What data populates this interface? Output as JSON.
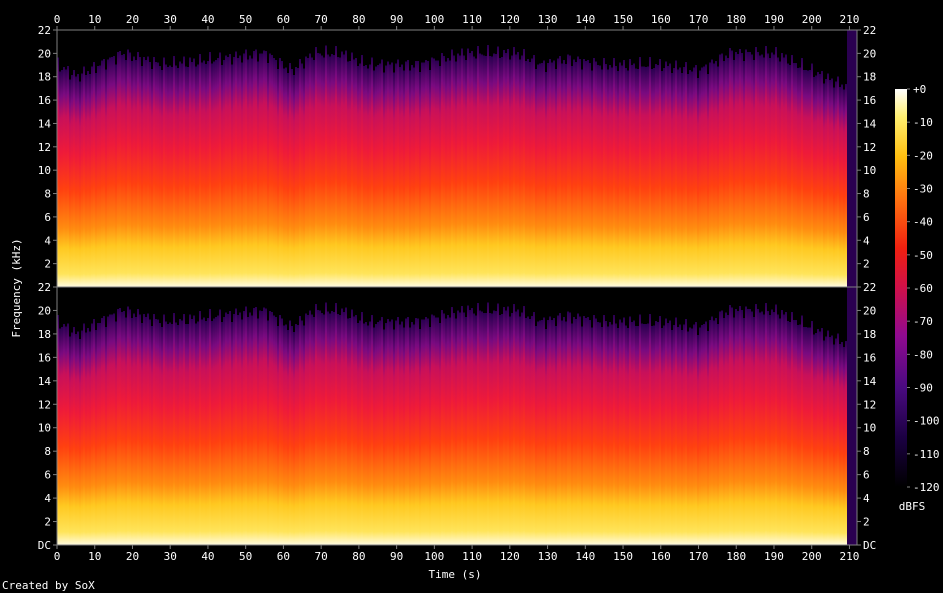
{
  "chart_data": {
    "type": "heatmap",
    "title": "",
    "xlabel": "Time (s)",
    "ylabel": "Frequency (kHz)",
    "colorbar_label": "dBFS",
    "credit": "Created by SoX",
    "channels": 2,
    "x_range": [
      0,
      212
    ],
    "x_ticks": [
      0,
      10,
      20,
      30,
      40,
      50,
      60,
      70,
      80,
      90,
      100,
      110,
      120,
      130,
      140,
      150,
      160,
      170,
      180,
      190,
      200,
      210
    ],
    "x_tick_labels": [
      "0",
      "10",
      "20",
      "30",
      "40",
      "50",
      "60",
      "70",
      "80",
      "90",
      "100",
      "110",
      "120",
      "130",
      "140",
      "150",
      "160",
      "170",
      "180",
      "190",
      "200",
      "210"
    ],
    "y_range": [
      0,
      22
    ],
    "y_ticks": [
      2,
      4,
      6,
      8,
      10,
      12,
      14,
      16,
      18,
      20,
      22
    ],
    "y_tick_labels_top": [
      "2",
      "4",
      "6",
      "8",
      "10",
      "12",
      "14",
      "16",
      "18",
      "20",
      "22"
    ],
    "y_tick_labels_bottom": [
      "DC",
      "2",
      "4",
      "6",
      "8",
      "10",
      "12",
      "14",
      "16",
      "18",
      "20",
      "22"
    ],
    "colorbar_range": [
      -120,
      0
    ],
    "colorbar_ticks": [
      0,
      -10,
      -20,
      -30,
      -40,
      -50,
      -60,
      -70,
      -80,
      -90,
      -100,
      -110,
      -120
    ],
    "colorbar_tick_labels": [
      "+0",
      "-10",
      "-20",
      "-30",
      "-40",
      "-50",
      "-60",
      "-70",
      "-80",
      "-90",
      "-100",
      "-110",
      "-120"
    ],
    "upper_band_cutoffs_khz": [
      [
        0,
        19
      ],
      [
        5,
        18
      ],
      [
        17,
        20
      ],
      [
        28,
        19
      ],
      [
        42,
        19.5
      ],
      [
        55,
        20
      ],
      [
        62,
        18.5
      ],
      [
        68,
        20
      ],
      [
        75,
        20
      ],
      [
        82,
        19
      ],
      [
        95,
        19
      ],
      [
        108,
        20
      ],
      [
        122,
        20
      ],
      [
        128,
        19
      ],
      [
        135,
        19.5
      ],
      [
        145,
        19
      ],
      [
        160,
        19
      ],
      [
        170,
        18.5
      ],
      [
        178,
        20
      ],
      [
        190,
        20
      ],
      [
        203,
        18
      ],
      [
        210,
        17
      ]
    ],
    "colors": {
      "background": "#000000",
      "text": "#ffffff",
      "axis": "#7f7f7f"
    }
  }
}
